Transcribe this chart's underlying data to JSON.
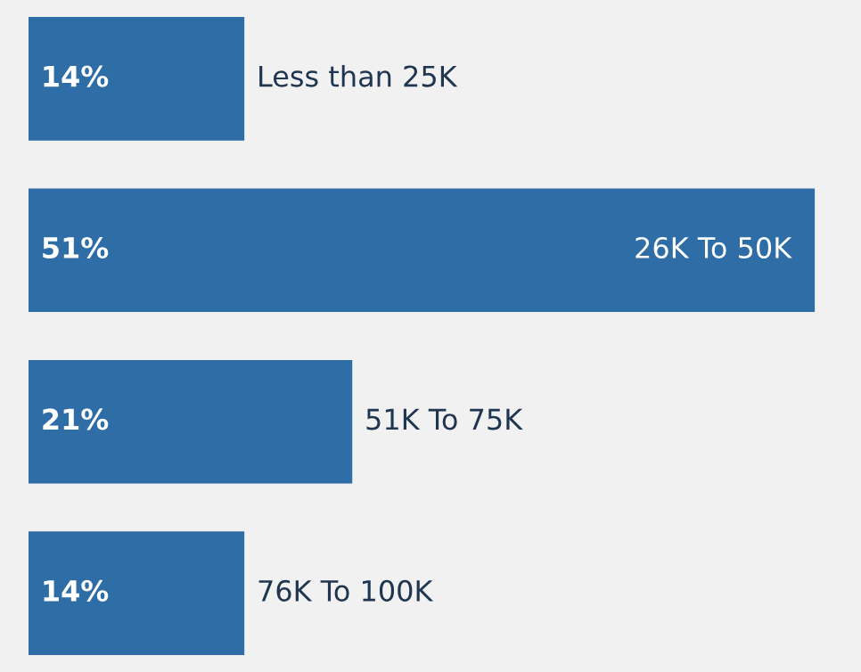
{
  "chart_data": {
    "type": "bar",
    "orientation": "horizontal",
    "categories": [
      "Less than 25K",
      "26K To 50K",
      "51K To 75K",
      "76K To 100K"
    ],
    "values": [
      14,
      51,
      21,
      14
    ],
    "value_labels": [
      "14%",
      "51%",
      "21%",
      "14%"
    ],
    "color": "#2e6da6",
    "xlim": [
      0,
      54
    ]
  }
}
